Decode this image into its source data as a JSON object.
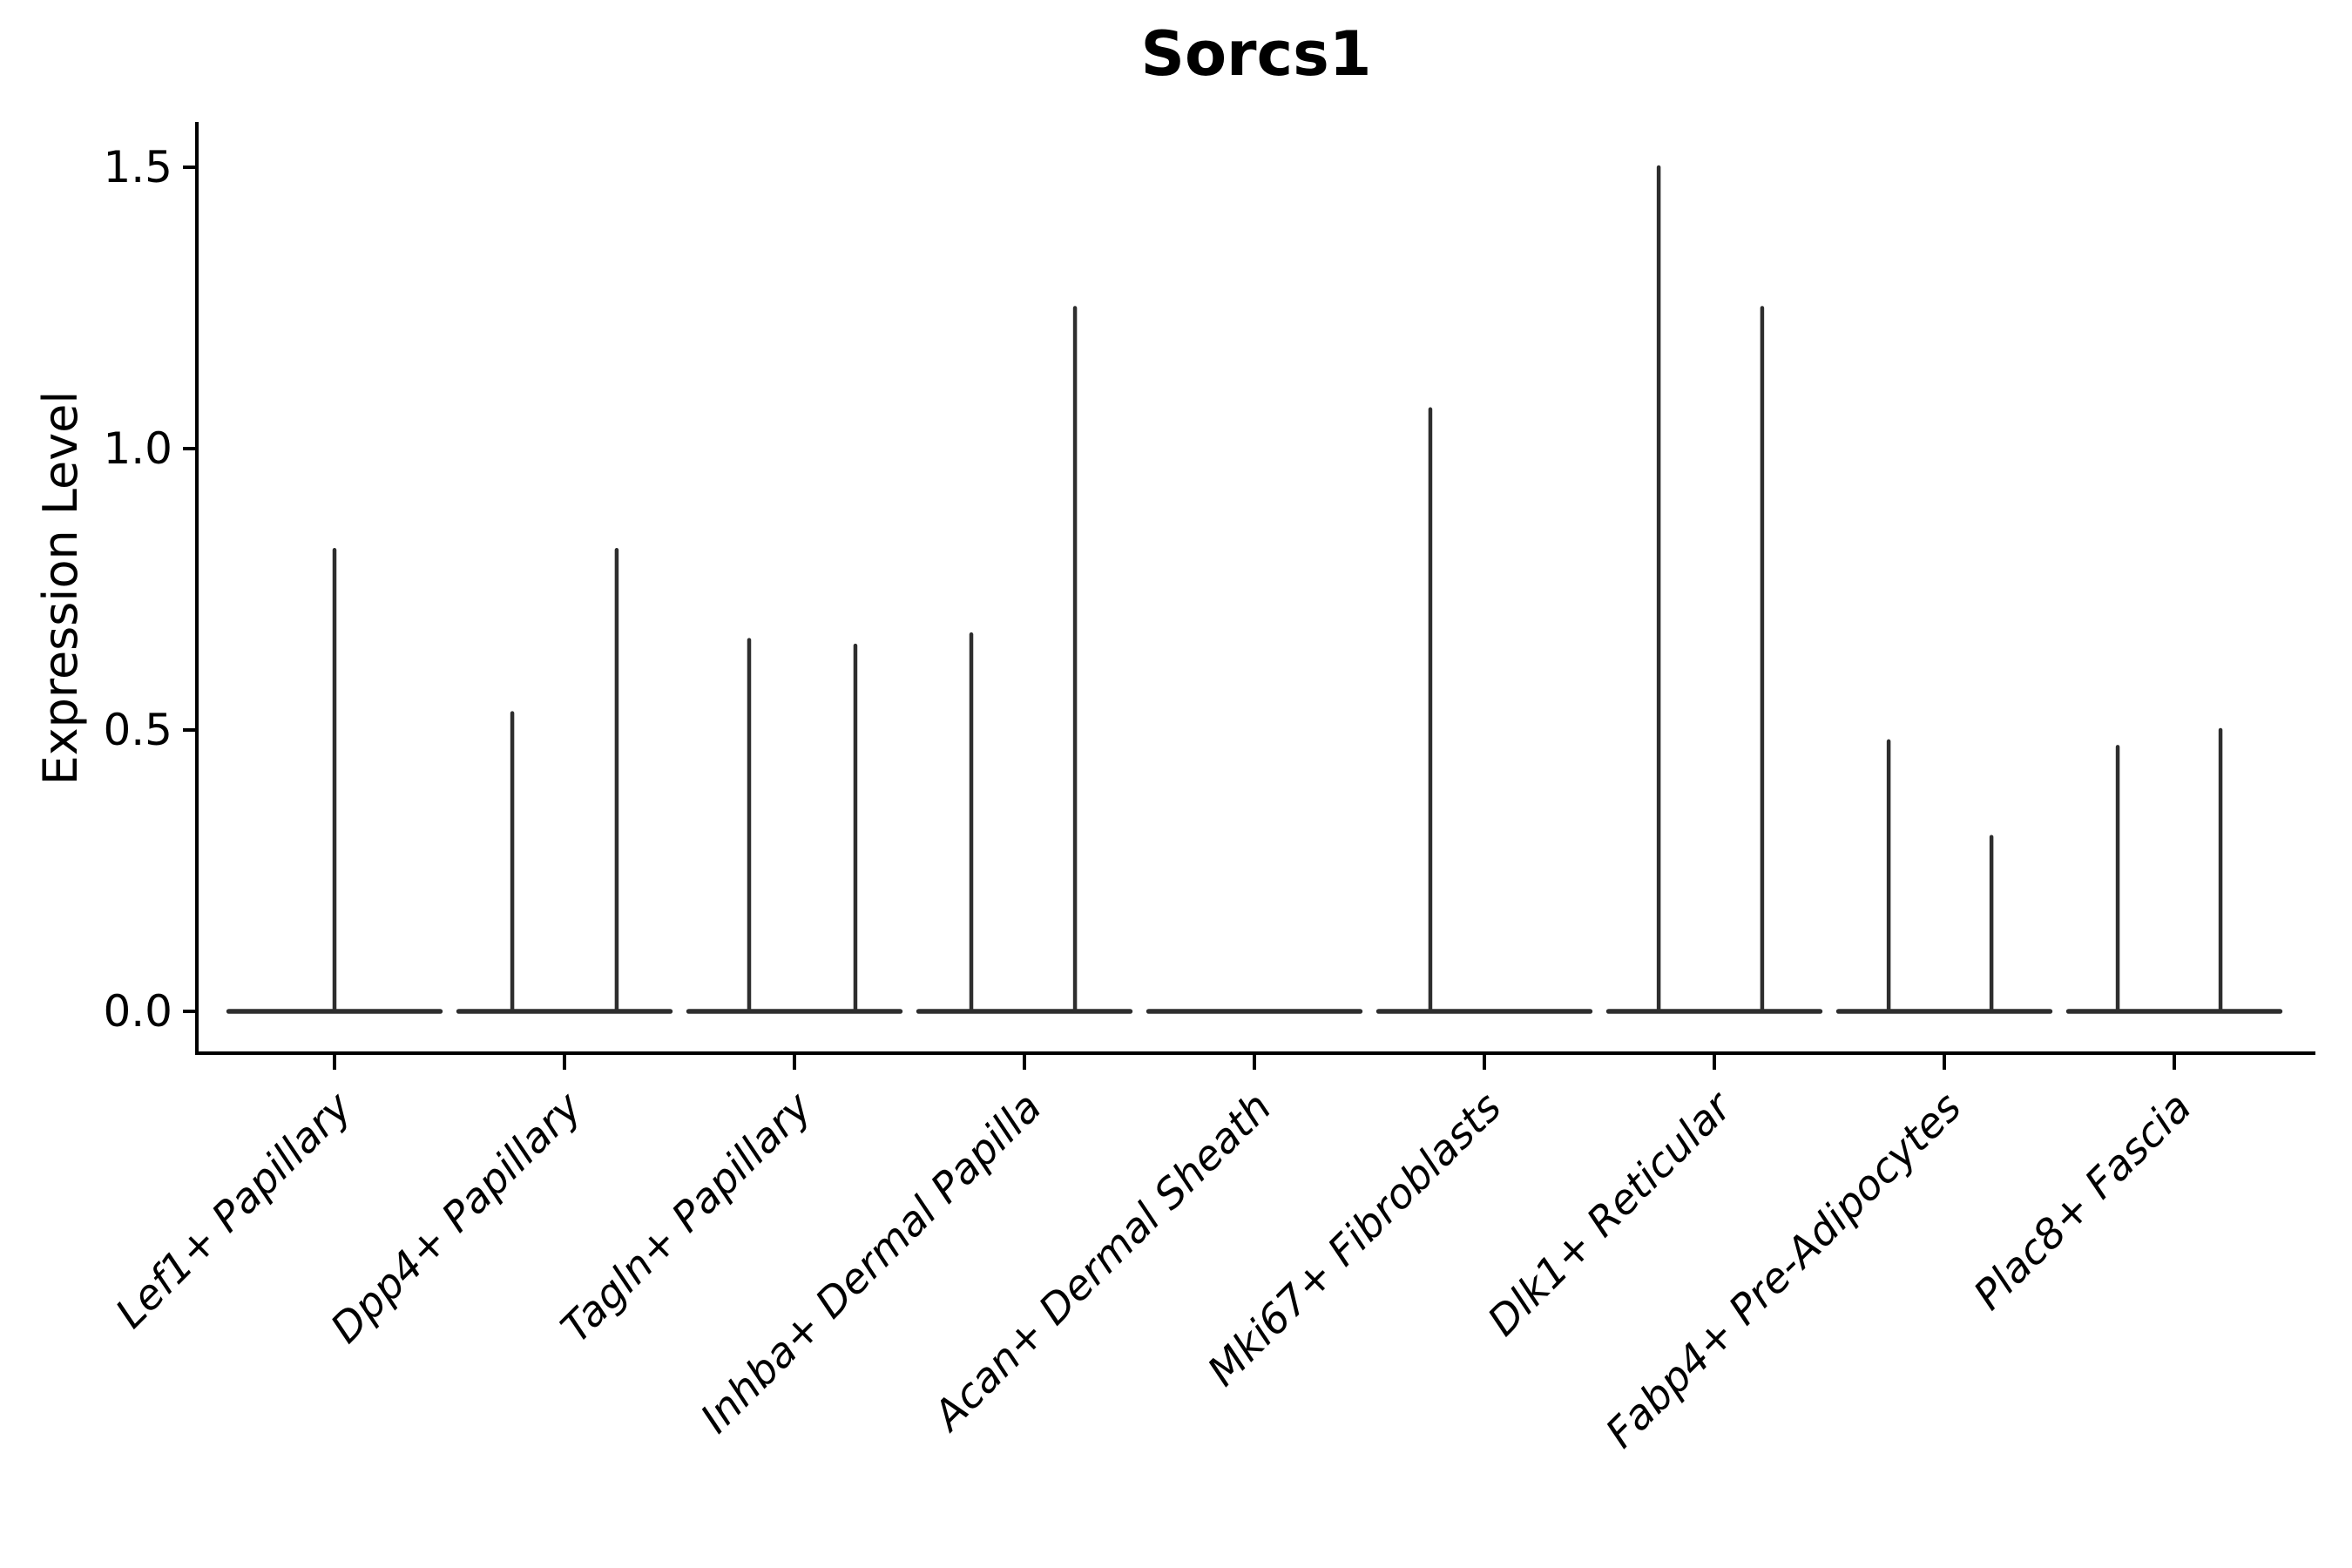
{
  "title": "Sorcs1",
  "axes": {
    "ylabel": "Expression Level",
    "ytick_labels": [
      "0.0",
      "0.5",
      "1.0",
      "1.5"
    ]
  },
  "chart_data": {
    "type": "violin",
    "title": "Sorcs1",
    "xlabel": "",
    "ylabel": "Expression Level",
    "ylim": [
      -0.07,
      1.58
    ],
    "yticks": [
      0.0,
      0.5,
      1.0,
      1.5
    ],
    "grid": false,
    "legend": "none",
    "categories": [
      "Lef1+ Papillary",
      "Dpp4+ Papillary",
      "Tagln+ Papillary",
      "Inhba+ Dermal Papilla",
      "Acan+ Dermal Sheath",
      "Mki67+ Fibroblasts",
      "Dlk1+ Reticular",
      "Fabp4+ Pre-Adipocytes",
      "Plac8+ Fascia"
    ],
    "series": [
      {
        "category": "Lef1+ Papillary",
        "max_expression": 0.82,
        "spikes": [
          {
            "offset": 0.0,
            "value": 0.82
          }
        ]
      },
      {
        "category": "Dpp4+ Papillary",
        "max_expression": 0.82,
        "spikes": [
          {
            "offset": -0.227,
            "value": 0.53
          },
          {
            "offset": 0.227,
            "value": 0.82
          }
        ]
      },
      {
        "category": "Tagln+ Papillary",
        "max_expression": 0.66,
        "spikes": [
          {
            "offset": -0.197,
            "value": 0.66
          },
          {
            "offset": 0.265,
            "value": 0.65
          }
        ]
      },
      {
        "category": "Inhba+ Dermal Papilla",
        "max_expression": 1.25,
        "spikes": [
          {
            "offset": -0.231,
            "value": 0.67
          },
          {
            "offset": 0.22,
            "value": 1.25
          }
        ]
      },
      {
        "category": "Acan+ Dermal Sheath",
        "max_expression": 0.0,
        "spikes": []
      },
      {
        "category": "Mki67+ Fibroblasts",
        "max_expression": 1.07,
        "spikes": [
          {
            "offset": -0.235,
            "value": 1.07
          }
        ]
      },
      {
        "category": "Dlk1+ Reticular",
        "max_expression": 1.5,
        "spikes": [
          {
            "offset": -0.242,
            "value": 1.5
          },
          {
            "offset": 0.208,
            "value": 1.25
          }
        ]
      },
      {
        "category": "Fabp4+ Pre-Adipocytes",
        "max_expression": 0.48,
        "spikes": [
          {
            "offset": -0.242,
            "value": 0.48
          },
          {
            "offset": 0.205,
            "value": 0.31
          }
        ]
      },
      {
        "category": "Plac8+ Fascia",
        "max_expression": 0.5,
        "spikes": [
          {
            "offset": -0.246,
            "value": 0.47
          },
          {
            "offset": 0.201,
            "value": 0.5
          }
        ]
      }
    ],
    "violin_body_halfwidth": 0.46,
    "colors": {
      "violin": "#2e2e2e",
      "axis": "#000000",
      "text": "#000000",
      "background": "#ffffff"
    }
  }
}
